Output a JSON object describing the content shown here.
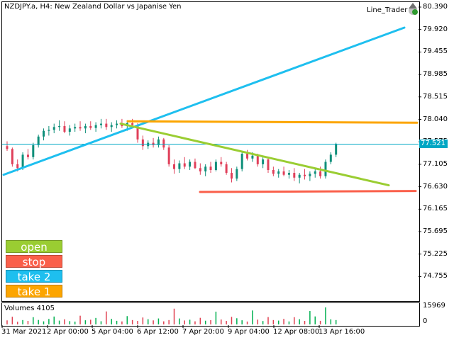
{
  "header": {
    "symbol_title": "NZDJPY.a, H4:  New Zealand Dollar vs Japanise Yen",
    "indicator_name": "Line_Trader"
  },
  "price_axis": {
    "labels": [
      "80.390",
      "79.920",
      "79.455",
      "78.985",
      "78.515",
      "78.040",
      "77.575",
      "77.105",
      "76.630",
      "76.165",
      "75.695",
      "75.225",
      "74.755"
    ],
    "current_price": "77.521",
    "current_price_value": 77.521,
    "ylim": [
      74.52,
      80.39
    ]
  },
  "volume_panel": {
    "label": "Volumes 4105",
    "max_label": "15969",
    "zero_label": "0"
  },
  "time_axis": {
    "labels": [
      "31 Mar 2021",
      "2 Apr 00:00",
      "5 Apr 04:00",
      "6 Apr 12:00",
      "7 Apr 20:00",
      "9 Apr 04:00",
      "12 Apr 08:00",
      "13 Apr 16:00"
    ]
  },
  "buttons": {
    "open": {
      "label": "open",
      "color": "#9acd32"
    },
    "stop": {
      "label": "stop",
      "color": "#fa5f4a"
    },
    "take2": {
      "label": "take 2",
      "color": "#1ebfef"
    },
    "take1": {
      "label": "take 1",
      "color": "#fca500"
    }
  },
  "colors": {
    "bull_candle": "#0f8f7a",
    "bear_candle": "#e0405a",
    "volume_bar": "#00b050",
    "volume_bar_down": "#e04050",
    "line_take2": "#1ebfef",
    "line_take1": "#fca500",
    "line_open": "#9acd32",
    "line_stop": "#fa5f4a",
    "bid_line": "#00a7c4"
  },
  "chart_data": {
    "type": "candlestick",
    "series_name": "NZDJPY.a H4",
    "candles": [
      [
        77.48,
        77.58,
        77.38,
        77.42
      ],
      [
        77.42,
        77.45,
        77.05,
        77.1
      ],
      [
        77.1,
        77.2,
        76.95,
        77.02
      ],
      [
        77.02,
        77.35,
        76.98,
        77.3
      ],
      [
        77.3,
        77.42,
        77.2,
        77.25
      ],
      [
        77.25,
        77.55,
        77.2,
        77.5
      ],
      [
        77.5,
        77.72,
        77.45,
        77.68
      ],
      [
        77.68,
        77.85,
        77.6,
        77.8
      ],
      [
        77.8,
        77.9,
        77.7,
        77.82
      ],
      [
        77.82,
        77.95,
        77.75,
        77.88
      ],
      [
        77.88,
        78.02,
        77.8,
        77.9
      ],
      [
        77.9,
        78.0,
        77.75,
        77.78
      ],
      [
        77.78,
        77.92,
        77.7,
        77.85
      ],
      [
        77.85,
        77.95,
        77.78,
        77.88
      ],
      [
        77.88,
        78.0,
        77.8,
        77.85
      ],
      [
        77.85,
        77.95,
        77.75,
        77.9
      ],
      [
        77.9,
        78.0,
        77.82,
        77.86
      ],
      [
        77.86,
        77.98,
        77.78,
        77.92
      ],
      [
        77.92,
        78.05,
        77.85,
        77.95
      ],
      [
        77.95,
        78.05,
        77.82,
        77.88
      ],
      [
        77.88,
        77.98,
        77.78,
        77.92
      ],
      [
        77.92,
        78.02,
        77.85,
        77.95
      ],
      [
        77.95,
        78.05,
        77.86,
        77.9
      ],
      [
        77.9,
        78.02,
        77.8,
        77.96
      ],
      [
        77.96,
        78.05,
        77.88,
        77.92
      ],
      [
        77.92,
        77.96,
        77.55,
        77.62
      ],
      [
        77.62,
        77.7,
        77.4,
        77.48
      ],
      [
        77.48,
        77.6,
        77.42,
        77.55
      ],
      [
        77.55,
        77.65,
        77.45,
        77.5
      ],
      [
        77.5,
        77.68,
        77.45,
        77.62
      ],
      [
        77.62,
        77.65,
        77.4,
        77.45
      ],
      [
        77.45,
        77.5,
        77.05,
        77.1
      ],
      [
        77.1,
        77.2,
        76.9,
        77.0
      ],
      [
        77.0,
        77.18,
        76.92,
        77.12
      ],
      [
        77.12,
        77.25,
        77.0,
        77.05
      ],
      [
        77.05,
        77.2,
        76.98,
        77.15
      ],
      [
        77.15,
        77.22,
        77.0,
        77.02
      ],
      [
        77.02,
        77.12,
        76.88,
        76.95
      ],
      [
        76.95,
        77.1,
        76.85,
        77.05
      ],
      [
        77.05,
        77.15,
        76.92,
        76.98
      ],
      [
        76.98,
        77.2,
        76.95,
        77.15
      ],
      [
        77.15,
        77.25,
        77.05,
        77.1
      ],
      [
        77.1,
        77.15,
        76.88,
        76.92
      ],
      [
        76.92,
        77.02,
        76.72,
        76.8
      ],
      [
        76.8,
        77.05,
        76.75,
        77.0
      ],
      [
        77.0,
        77.38,
        76.95,
        77.32
      ],
      [
        77.32,
        77.4,
        77.18,
        77.22
      ],
      [
        77.22,
        77.35,
        77.15,
        77.28
      ],
      [
        77.28,
        77.32,
        77.05,
        77.1
      ],
      [
        77.1,
        77.25,
        77.02,
        77.2
      ],
      [
        77.2,
        77.25,
        76.92,
        76.98
      ],
      [
        76.98,
        77.05,
        76.85,
        76.9
      ],
      [
        76.9,
        77.0,
        76.82,
        76.95
      ],
      [
        76.95,
        77.05,
        76.85,
        76.88
      ],
      [
        76.88,
        76.98,
        76.8,
        76.92
      ],
      [
        76.92,
        77.02,
        76.75,
        76.82
      ],
      [
        76.82,
        76.92,
        76.7,
        76.88
      ],
      [
        76.88,
        77.0,
        76.78,
        76.85
      ],
      [
        76.85,
        76.95,
        76.75,
        76.9
      ],
      [
        76.9,
        77.0,
        76.82,
        76.95
      ],
      [
        76.95,
        77.05,
        76.8,
        76.85
      ],
      [
        76.85,
        77.2,
        76.8,
        77.15
      ],
      [
        77.15,
        77.35,
        77.1,
        77.3
      ],
      [
        77.3,
        77.55,
        77.25,
        77.52
      ]
    ],
    "volumes": [
      3800,
      7200,
      2500,
      4100,
      3300,
      6800,
      4200,
      2900,
      5100,
      7400,
      3600,
      4800,
      3100,
      2600,
      8200,
      3900,
      4400,
      6100,
      3000,
      12200,
      5200,
      3400,
      2800,
      7800,
      4100,
      3300,
      6500,
      4900,
      3800,
      5600,
      2900,
      4100,
      14800,
      5600,
      3700,
      4400,
      2900,
      6200,
      3500,
      4000,
      12000,
      4600,
      3300,
      7100,
      5800,
      3900,
      2700,
      13100,
      4500,
      3200,
      6900,
      4100,
      3600,
      5200,
      2800,
      6800,
      4900,
      3300,
      12600,
      7500,
      3400,
      15969,
      4800,
      4105
    ],
    "lines": [
      {
        "name": "take 2",
        "start_price": 76.88,
        "end_price": 79.96
      },
      {
        "name": "take 1",
        "start_price": 78.0,
        "end_price": 77.97
      },
      {
        "name": "open",
        "start_price": 77.95,
        "end_price": 76.66
      },
      {
        "name": "stop",
        "start_price": 76.52,
        "end_price": 76.54
      }
    ]
  }
}
